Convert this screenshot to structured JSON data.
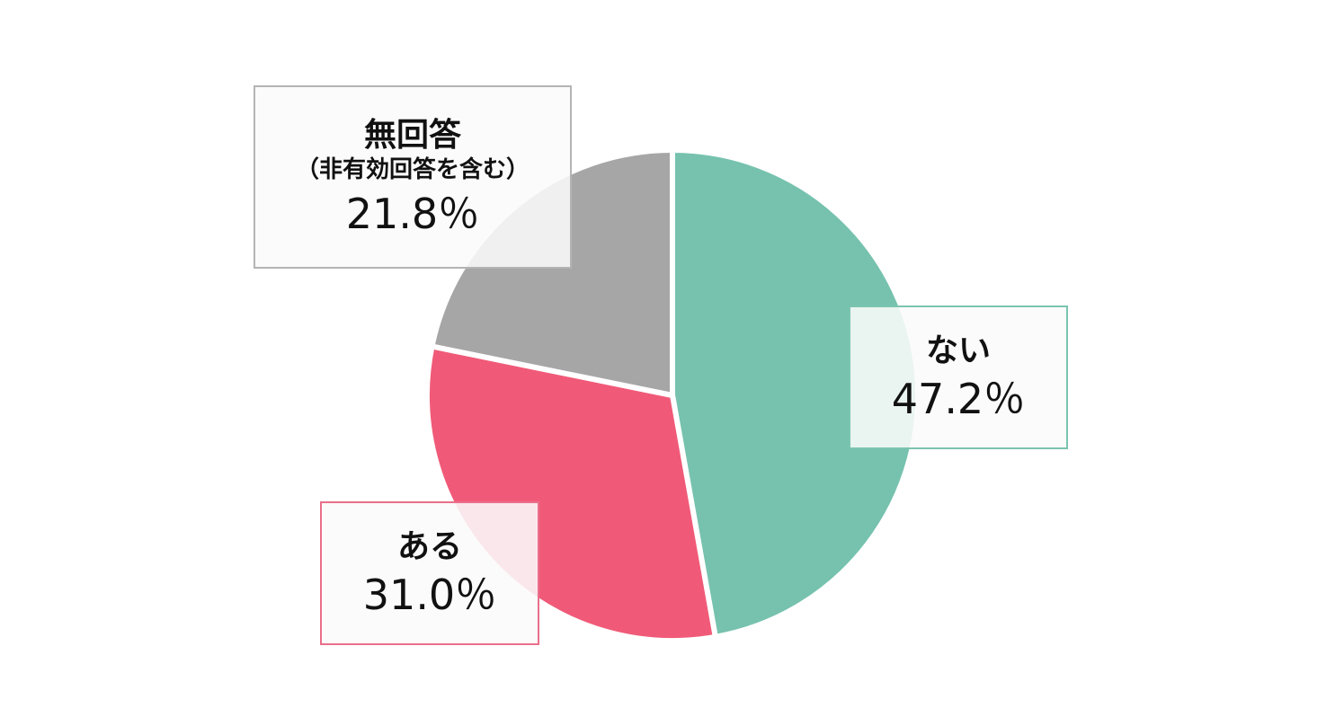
{
  "chart_data": {
    "type": "pie",
    "slices": [
      {
        "label": "ない",
        "value": 47.2,
        "value_label": "47.2％",
        "color": "#76c2ae"
      },
      {
        "label": "ある",
        "value": 31.0,
        "value_label": "31.0％",
        "color": "#f05a78"
      },
      {
        "label": "無回答",
        "sublabel": "（非有効回答を含む）",
        "value": 21.8,
        "value_label": "21.8％",
        "color": "#a6a6a6"
      }
    ],
    "start_angle_deg": 0,
    "direction": "clockwise",
    "legend": "callouts"
  }
}
